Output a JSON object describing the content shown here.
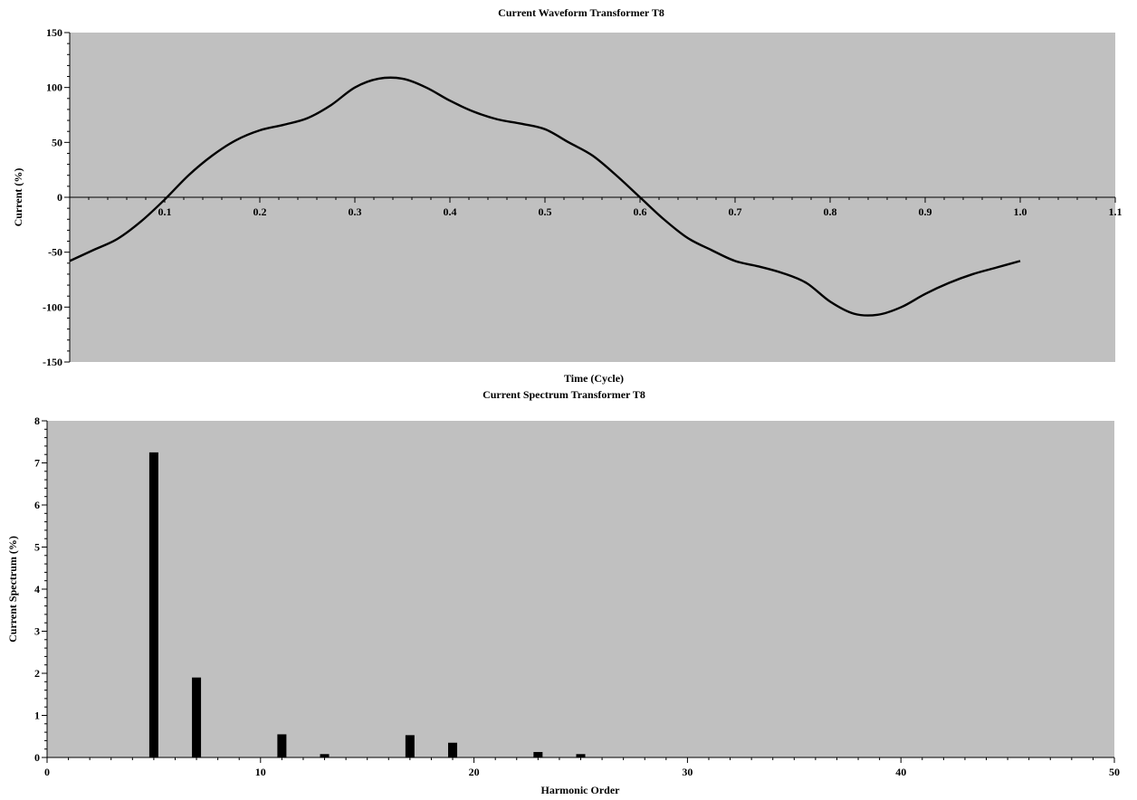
{
  "chart_data": [
    {
      "type": "line",
      "title": "Current Waveform Transformer T8",
      "xlabel": "Time (Cycle)",
      "ylabel": "Current (%)",
      "xlim": [
        0,
        1.1
      ],
      "ylim": [
        -150,
        150
      ],
      "x_ticks": [
        "0.1",
        "0.2",
        "0.3",
        "0.4",
        "0.5",
        "0.6",
        "0.7",
        "0.8",
        "0.9",
        "1.0",
        "1.1"
      ],
      "y_ticks": [
        "150",
        "100",
        "50",
        "0",
        "-50",
        "-100",
        "-150"
      ],
      "background": "#c0c0c0",
      "line_color": "#000000",
      "x": [
        0.0,
        0.025,
        0.05,
        0.075,
        0.1,
        0.125,
        0.15,
        0.175,
        0.2,
        0.225,
        0.25,
        0.275,
        0.3,
        0.325,
        0.35,
        0.375,
        0.4,
        0.425,
        0.45,
        0.475,
        0.5,
        0.525,
        0.55,
        0.575,
        0.6,
        0.625,
        0.65,
        0.675,
        0.7,
        0.725,
        0.75,
        0.775,
        0.8,
        0.825,
        0.85,
        0.875,
        0.9,
        0.925,
        0.95,
        0.975,
        1.0
      ],
      "y": [
        -58,
        -48,
        -38,
        -22,
        -2,
        20,
        38,
        52,
        61,
        66,
        72,
        84,
        100,
        108,
        108,
        100,
        88,
        78,
        71,
        67,
        62,
        50,
        38,
        20,
        0,
        -20,
        -37,
        -48,
        -58,
        -63,
        -69,
        -78,
        -95,
        -106,
        -107,
        -100,
        -88,
        -78,
        -70,
        -64,
        -58
      ]
    },
    {
      "type": "bar",
      "title": "Current Spectrum Transformer T8",
      "xlabel": "Harmonic Order",
      "ylabel": "Current Spectrum (%)",
      "xlim": [
        0,
        50
      ],
      "ylim": [
        0,
        8
      ],
      "x_ticks": [
        "0",
        "10",
        "20",
        "30",
        "40",
        "50"
      ],
      "y_ticks": [
        "8",
        "7",
        "6",
        "5",
        "4",
        "3",
        "2",
        "1",
        "0"
      ],
      "background": "#c0c0c0",
      "bar_color": "#000000",
      "x": [
        5,
        7,
        11,
        13,
        17,
        19,
        23,
        25
      ],
      "values": [
        7.25,
        1.9,
        0.55,
        0.08,
        0.53,
        0.35,
        0.13,
        0.08
      ]
    }
  ]
}
